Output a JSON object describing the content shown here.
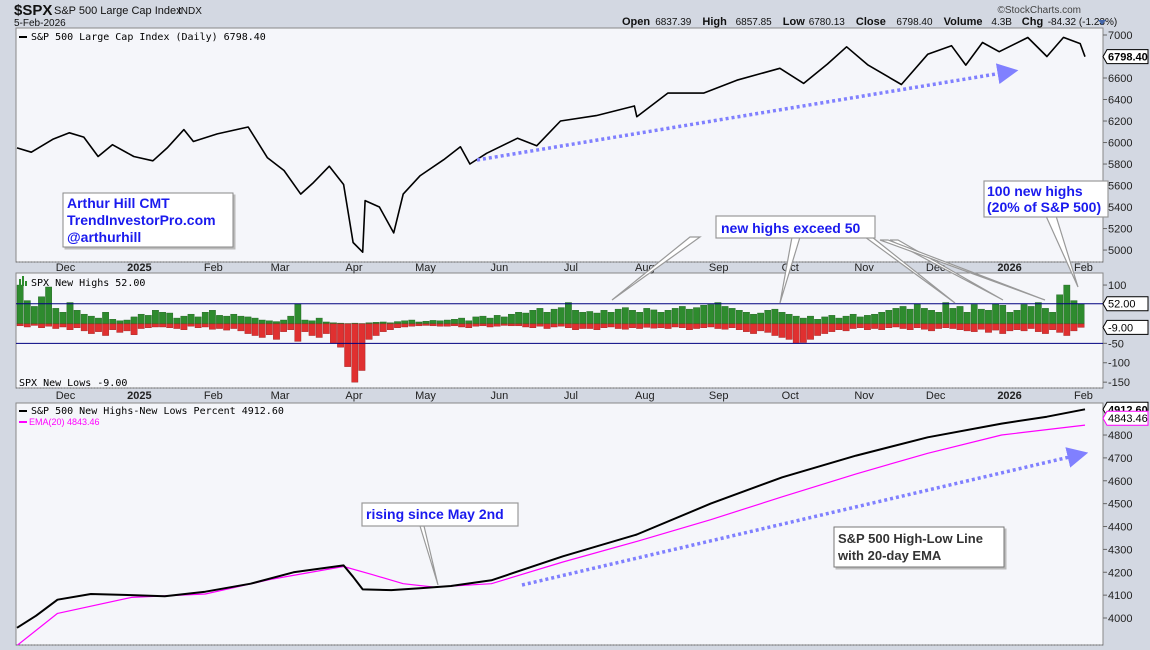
{
  "header": {
    "symbol": "$SPX",
    "name": "S&P 500 Large Cap Index",
    "exchange": "INDX",
    "date": "5-Feb-2026",
    "watermark": "©StockCharts.com",
    "quote": [
      {
        "label": "Open",
        "value": "6837.39"
      },
      {
        "label": "High",
        "value": "6857.85"
      },
      {
        "label": "Low",
        "value": "6780.13"
      },
      {
        "label": "Close",
        "value": "6798.40"
      },
      {
        "label": "Volume",
        "value": "4.3B"
      },
      {
        "label": "Chg",
        "value": "-84.32 (-1.23%)"
      }
    ]
  },
  "annotations": {
    "author_lines": [
      "Arthur Hill CMT",
      "TrendInvestorPro.com",
      "@arthurhill"
    ],
    "new_highs_exceed": "new highs exceed 50",
    "hundred_lines": [
      "100 new highs",
      "(20% of S&P 500)"
    ],
    "rising_since": "rising since May 2nd",
    "hl_line_lines": [
      "S&P 500 High-Low Line",
      "with 20-day EMA"
    ]
  },
  "colors": {
    "price": "#000000",
    "ema": "#ff00ff",
    "highs": "#2e8b2e",
    "lows": "#e03030",
    "ref_line": "#000080",
    "arrow": "#8080ff",
    "callout_text": "#1a1aee"
  },
  "x_axis": {
    "ticks": [
      {
        "label": "Dec",
        "date": "2024-12-01",
        "bold": false
      },
      {
        "label": "2025",
        "date": "2025-01-01",
        "bold": true
      },
      {
        "label": "Feb",
        "date": "2025-02-01",
        "bold": false
      },
      {
        "label": "Mar",
        "date": "2025-03-01",
        "bold": false
      },
      {
        "label": "Apr",
        "date": "2025-04-01",
        "bold": false
      },
      {
        "label": "May",
        "date": "2025-05-01",
        "bold": false
      },
      {
        "label": "Jun",
        "date": "2025-06-01",
        "bold": false
      },
      {
        "label": "Jul",
        "date": "2025-07-01",
        "bold": false
      },
      {
        "label": "Aug",
        "date": "2025-08-01",
        "bold": false
      },
      {
        "label": "Sep",
        "date": "2025-09-01",
        "bold": false
      },
      {
        "label": "Oct",
        "date": "2025-10-01",
        "bold": false
      },
      {
        "label": "Nov",
        "date": "2025-11-01",
        "bold": false
      },
      {
        "label": "Dec",
        "date": "2025-12-01",
        "bold": false
      },
      {
        "label": "2026",
        "date": "2026-01-01",
        "bold": true
      },
      {
        "label": "Feb",
        "date": "2026-02-01",
        "bold": false
      }
    ],
    "range": [
      "2024-11-14",
      "2026-02-05"
    ]
  },
  "chart_data": [
    {
      "type": "line",
      "legend": "S&P 500 Large Cap Index (Daily) 6798.40",
      "last_value_label": "6798.40",
      "ylim": [
        4889,
        7065
      ],
      "yticks": [
        7000,
        6600,
        6400,
        6200,
        6000,
        5800,
        5600,
        5400,
        5200,
        5000
      ],
      "grid": false,
      "series": [
        {
          "name": "S&P 500 Large Cap Index (Daily)",
          "points": [
            [
              "2024-11-14",
              5950
            ],
            [
              "2024-11-20",
              5910
            ],
            [
              "2024-11-29",
              6030
            ],
            [
              "2024-12-06",
              6090
            ],
            [
              "2024-12-12",
              6050
            ],
            [
              "2024-12-18",
              5870
            ],
            [
              "2024-12-24",
              5980
            ],
            [
              "2025-01-02",
              5870
            ],
            [
              "2025-01-10",
              5830
            ],
            [
              "2025-01-16",
              5950
            ],
            [
              "2025-01-23",
              6120
            ],
            [
              "2025-01-27",
              6010
            ],
            [
              "2025-02-06",
              6080
            ],
            [
              "2025-02-19",
              6144
            ],
            [
              "2025-02-27",
              5860
            ],
            [
              "2025-03-06",
              5740
            ],
            [
              "2025-03-13",
              5520
            ],
            [
              "2025-03-18",
              5620
            ],
            [
              "2025-03-25",
              5780
            ],
            [
              "2025-03-31",
              5610
            ],
            [
              "2025-04-04",
              5070
            ],
            [
              "2025-04-08",
              4980
            ],
            [
              "2025-04-09",
              5460
            ],
            [
              "2025-04-15",
              5400
            ],
            [
              "2025-04-21",
              5160
            ],
            [
              "2025-04-25",
              5520
            ],
            [
              "2025-05-02",
              5690
            ],
            [
              "2025-05-12",
              5840
            ],
            [
              "2025-05-19",
              5960
            ],
            [
              "2025-05-23",
              5800
            ],
            [
              "2025-05-30",
              5900
            ],
            [
              "2025-06-12",
              6040
            ],
            [
              "2025-06-20",
              5970
            ],
            [
              "2025-06-30",
              6200
            ],
            [
              "2025-07-15",
              6250
            ],
            [
              "2025-07-31",
              6340
            ],
            [
              "2025-08-01",
              6240
            ],
            [
              "2025-08-14",
              6460
            ],
            [
              "2025-08-29",
              6460
            ],
            [
              "2025-09-12",
              6580
            ],
            [
              "2025-09-30",
              6690
            ],
            [
              "2025-10-10",
              6550
            ],
            [
              "2025-10-20",
              6730
            ],
            [
              "2025-10-28",
              6890
            ],
            [
              "2025-11-06",
              6720
            ],
            [
              "2025-11-20",
              6540
            ],
            [
              "2025-12-01",
              6820
            ],
            [
              "2025-12-11",
              6900
            ],
            [
              "2025-12-17",
              6720
            ],
            [
              "2025-12-24",
              6930
            ],
            [
              "2025-12-31",
              6845
            ],
            [
              "2026-01-12",
              6977
            ],
            [
              "2026-01-20",
              6800
            ],
            [
              "2026-01-27",
              6978
            ],
            [
              "2026-02-03",
              6920
            ],
            [
              "2026-02-05",
              6798.4
            ]
          ]
        }
      ]
    },
    {
      "type": "bar",
      "legend_highs": "SPX New Highs 52.00",
      "legend_lows": "SPX New Lows -9.00",
      "last_high_label": "52.00",
      "last_low_label": "-9.00",
      "ylim": [
        -165,
        131
      ],
      "yticks": [
        100,
        -50,
        -100,
        -150
      ],
      "reference_lines": [
        52,
        -50
      ],
      "series": [
        {
          "name": "SPX New Highs",
          "values": [
            100,
            60,
            45,
            70,
            95,
            40,
            30,
            55,
            35,
            25,
            20,
            15,
            30,
            12,
            8,
            10,
            18,
            25,
            22,
            35,
            30,
            28,
            15,
            20,
            25,
            18,
            30,
            35,
            22,
            20,
            25,
            20,
            18,
            15,
            10,
            8,
            6,
            10,
            20,
            52,
            10,
            8,
            15,
            5,
            3,
            2,
            1,
            2,
            1,
            3,
            4,
            5,
            3,
            6,
            8,
            10,
            5,
            7,
            9,
            8,
            10,
            12,
            15,
            8,
            18,
            20,
            15,
            22,
            18,
            25,
            30,
            28,
            35,
            40,
            30,
            38,
            42,
            55,
            35,
            30,
            32,
            28,
            35,
            30,
            38,
            42,
            35,
            30,
            40,
            36,
            30,
            35,
            40,
            45,
            38,
            42,
            48,
            50,
            55,
            45,
            40,
            35,
            30,
            25,
            28,
            35,
            38,
            30,
            25,
            20,
            15,
            20,
            12,
            18,
            22,
            15,
            20,
            25,
            18,
            22,
            25,
            30,
            35,
            40,
            45,
            38,
            52,
            40,
            35,
            30,
            55,
            40,
            45,
            30,
            50,
            38,
            35,
            52,
            48,
            30,
            35,
            50,
            45,
            55,
            40,
            30,
            75,
            100,
            60,
            52
          ]
        },
        {
          "name": "SPX New Lows",
          "values": [
            -5,
            -8,
            -4,
            -10,
            -6,
            -12,
            -8,
            -15,
            -10,
            -18,
            -25,
            -20,
            -30,
            -15,
            -22,
            -18,
            -28,
            -12,
            -10,
            -8,
            -8,
            -10,
            -12,
            -15,
            -6,
            -10,
            -8,
            -14,
            -12,
            -16,
            -12,
            -18,
            -25,
            -30,
            -35,
            -28,
            -40,
            -20,
            -15,
            -45,
            -20,
            -30,
            -35,
            -25,
            -50,
            -60,
            -110,
            -150,
            -120,
            -40,
            -30,
            -20,
            -15,
            -10,
            -8,
            -6,
            -5,
            -4,
            -5,
            -6,
            -6,
            -5,
            -8,
            -10,
            -6,
            -5,
            -8,
            -6,
            -4,
            -5,
            -5,
            -8,
            -10,
            -6,
            -12,
            -8,
            -6,
            -10,
            -15,
            -12,
            -12,
            -15,
            -10,
            -8,
            -12,
            -14,
            -10,
            -12,
            -9,
            -11,
            -10,
            -12,
            -8,
            -10,
            -15,
            -12,
            -10,
            -8,
            -12,
            -14,
            -10,
            -15,
            -20,
            -25,
            -18,
            -22,
            -30,
            -35,
            -40,
            -50,
            -48,
            -40,
            -30,
            -25,
            -20,
            -15,
            -18,
            -12,
            -10,
            -15,
            -12,
            -15,
            -10,
            -8,
            -12,
            -15,
            -10,
            -14,
            -18,
            -12,
            -10,
            -12,
            -15,
            -18,
            -20,
            -14,
            -22,
            -16,
            -25,
            -18,
            -15,
            -18,
            -12,
            -20,
            -25,
            -15,
            -22,
            -30,
            -18,
            -9
          ]
        }
      ]
    },
    {
      "type": "line",
      "legend_line": "S&P 500 New Highs-New Lows Percent 4912.60",
      "legend_ema": "EMA(20) 4843.46",
      "last_value_label": "4912.60",
      "last_ema_label": "4843.46",
      "ylim": [
        3882,
        4940
      ],
      "yticks": [
        4800,
        4700,
        4600,
        4500,
        4400,
        4300,
        4200,
        4100,
        4000
      ],
      "series": [
        {
          "name": "S&P 500 New Highs-New Lows Percent",
          "points": [
            [
              "2024-11-14",
              3957
            ],
            [
              "2024-11-22",
              4010
            ],
            [
              "2024-12-01",
              4080
            ],
            [
              "2024-12-15",
              4105
            ],
            [
              "2025-01-01",
              4100
            ],
            [
              "2025-01-15",
              4095
            ],
            [
              "2025-02-01",
              4115
            ],
            [
              "2025-02-20",
              4150
            ],
            [
              "2025-03-10",
              4200
            ],
            [
              "2025-03-31",
              4230
            ],
            [
              "2025-04-04",
              4180
            ],
            [
              "2025-04-08",
              4125
            ],
            [
              "2025-04-20",
              4122
            ],
            [
              "2025-05-02",
              4130
            ],
            [
              "2025-05-15",
              4140
            ],
            [
              "2025-06-01",
              4165
            ],
            [
              "2025-07-01",
              4270
            ],
            [
              "2025-08-01",
              4365
            ],
            [
              "2025-09-01",
              4500
            ],
            [
              "2025-10-01",
              4615
            ],
            [
              "2025-11-01",
              4710
            ],
            [
              "2025-12-01",
              4790
            ],
            [
              "2026-01-01",
              4850
            ],
            [
              "2026-01-20",
              4880
            ],
            [
              "2026-02-05",
              4912.6
            ]
          ]
        },
        {
          "name": "EMA(20)",
          "points": [
            [
              "2024-11-14",
              3880
            ],
            [
              "2024-12-01",
              4020
            ],
            [
              "2025-01-01",
              4090
            ],
            [
              "2025-02-01",
              4105
            ],
            [
              "2025-03-01",
              4170
            ],
            [
              "2025-03-31",
              4225
            ],
            [
              "2025-04-12",
              4190
            ],
            [
              "2025-04-25",
              4150
            ],
            [
              "2025-05-08",
              4135
            ],
            [
              "2025-06-01",
              4150
            ],
            [
              "2025-07-01",
              4245
            ],
            [
              "2025-08-01",
              4335
            ],
            [
              "2025-09-01",
              4430
            ],
            [
              "2025-10-01",
              4530
            ],
            [
              "2025-11-01",
              4630
            ],
            [
              "2025-12-01",
              4720
            ],
            [
              "2026-01-01",
              4800
            ],
            [
              "2026-02-05",
              4843.46
            ]
          ]
        }
      ]
    }
  ]
}
